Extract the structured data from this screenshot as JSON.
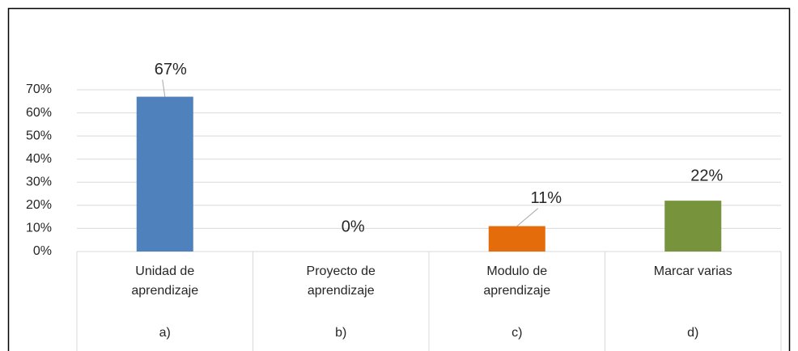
{
  "chart_data": {
    "type": "bar",
    "categories": [
      "Unidad de aprendizaje",
      "Proyecto de aprendizaje",
      "Modulo de aprendizaje",
      "Marcar varias"
    ],
    "sublabels": [
      "a)",
      "b)",
      "c)",
      "d)"
    ],
    "values": [
      67,
      0,
      11,
      22
    ],
    "value_labels": [
      "67%",
      "0%",
      "11%",
      "22%"
    ],
    "colors": [
      "#4f81bd",
      "#4f81bd",
      "#e46c0a",
      "#77933c"
    ],
    "ylim": [
      0,
      70
    ],
    "yticks": [
      {
        "value": 0,
        "label": "0%"
      },
      {
        "value": 10,
        "label": "10%"
      },
      {
        "value": 20,
        "label": "20%"
      },
      {
        "value": 30,
        "label": "30%"
      },
      {
        "value": 40,
        "label": "40%"
      },
      {
        "value": 50,
        "label": "50%"
      },
      {
        "value": 60,
        "label": "60%"
      },
      {
        "value": 70,
        "label": "70%"
      }
    ],
    "grid": true
  }
}
